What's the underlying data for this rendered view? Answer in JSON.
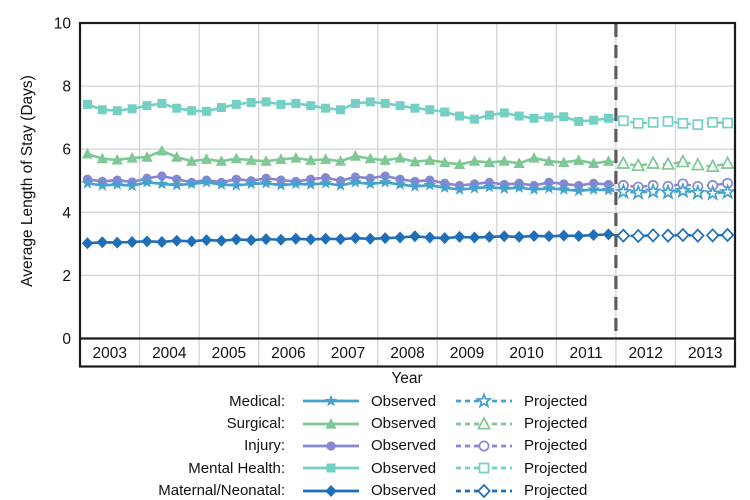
{
  "figure": {
    "background": "#ffffff",
    "axis_color": "#1a1a1a",
    "grid_color": "#d4d4d4",
    "divider_color": "#5b5b5b"
  },
  "legend": {
    "observed_label": "Observed",
    "projected_label": "Projected"
  },
  "chart_data": {
    "type": "line",
    "title": "",
    "xlabel": "Year",
    "ylabel": "Average Length of Stay (Days)",
    "x_tick_labels": [
      "2003",
      "2004",
      "2005",
      "2006",
      "2007",
      "2008",
      "2009",
      "2010",
      "2011",
      "2012",
      "2013"
    ],
    "y_ticks": [
      0,
      2,
      4,
      6,
      8,
      10
    ],
    "ylim": [
      0,
      10
    ],
    "xlim": [
      2003,
      2014
    ],
    "grid": true,
    "projection_divider_x": 2012,
    "x_start": 2003.125,
    "x_step": 0.25,
    "projected_x_start": 2012.125,
    "series": [
      {
        "name": "Medical:",
        "marker": "star",
        "color": "#45A1CD",
        "observed": [
          4.92,
          4.85,
          4.88,
          4.84,
          4.95,
          4.9,
          4.86,
          4.9,
          4.95,
          4.88,
          4.85,
          4.9,
          4.92,
          4.86,
          4.9,
          4.88,
          4.92,
          4.85,
          4.95,
          4.9,
          4.95,
          4.88,
          4.82,
          4.86,
          4.78,
          4.72,
          4.76,
          4.8,
          4.75,
          4.78,
          4.72,
          4.76,
          4.72,
          4.68,
          4.72,
          4.7
        ],
        "projected": [
          4.65,
          4.62,
          4.66,
          4.63,
          4.68,
          4.62,
          4.6,
          4.64
        ]
      },
      {
        "name": "Surgical:",
        "marker": "triangle",
        "color": "#7DC893",
        "observed": [
          5.85,
          5.7,
          5.66,
          5.72,
          5.75,
          5.95,
          5.75,
          5.62,
          5.68,
          5.62,
          5.7,
          5.65,
          5.62,
          5.68,
          5.72,
          5.65,
          5.68,
          5.62,
          5.78,
          5.7,
          5.65,
          5.72,
          5.6,
          5.65,
          5.58,
          5.52,
          5.62,
          5.58,
          5.62,
          5.55,
          5.72,
          5.62,
          5.58,
          5.65,
          5.55,
          5.62
        ],
        "projected": [
          5.55,
          5.48,
          5.55,
          5.52,
          5.6,
          5.5,
          5.45,
          5.55
        ]
      },
      {
        "name": "Injury:",
        "marker": "circle",
        "color": "#8687D0",
        "observed": [
          5.05,
          4.98,
          5.02,
          4.96,
          5.08,
          5.15,
          5.05,
          4.95,
          5.02,
          4.95,
          5.05,
          5.0,
          5.08,
          5.02,
          4.98,
          5.05,
          5.1,
          5.0,
          5.12,
          5.08,
          5.15,
          5.05,
          4.98,
          5.02,
          4.92,
          4.85,
          4.9,
          4.95,
          4.88,
          4.92,
          4.85,
          4.95,
          4.9,
          4.85,
          4.92,
          4.88
        ],
        "projected": [
          4.85,
          4.8,
          4.85,
          4.82,
          4.9,
          4.82,
          4.85,
          4.92
        ]
      },
      {
        "name": "Mental Health:",
        "marker": "square",
        "color": "#74CFC5",
        "observed": [
          7.42,
          7.25,
          7.22,
          7.28,
          7.38,
          7.45,
          7.3,
          7.22,
          7.2,
          7.32,
          7.42,
          7.48,
          7.5,
          7.42,
          7.45,
          7.38,
          7.3,
          7.25,
          7.45,
          7.5,
          7.45,
          7.38,
          7.3,
          7.25,
          7.18,
          7.05,
          6.95,
          7.08,
          7.15,
          7.05,
          6.98,
          7.02,
          7.03,
          6.88,
          6.92,
          6.98
        ],
        "projected": [
          6.9,
          6.82,
          6.85,
          6.88,
          6.82,
          6.78,
          6.85,
          6.83
        ]
      },
      {
        "name": "Maternal/Neonatal:",
        "marker": "diamond",
        "color": "#1E6FB7",
        "observed": [
          3.02,
          3.05,
          3.04,
          3.06,
          3.08,
          3.06,
          3.1,
          3.08,
          3.12,
          3.1,
          3.14,
          3.12,
          3.15,
          3.13,
          3.16,
          3.14,
          3.16,
          3.15,
          3.18,
          3.16,
          3.18,
          3.2,
          3.24,
          3.2,
          3.18,
          3.22,
          3.2,
          3.22,
          3.24,
          3.22,
          3.25,
          3.24,
          3.26,
          3.25,
          3.28,
          3.3
        ],
        "projected": [
          3.26,
          3.25,
          3.27,
          3.26,
          3.28,
          3.26,
          3.27,
          3.28
        ]
      }
    ]
  }
}
